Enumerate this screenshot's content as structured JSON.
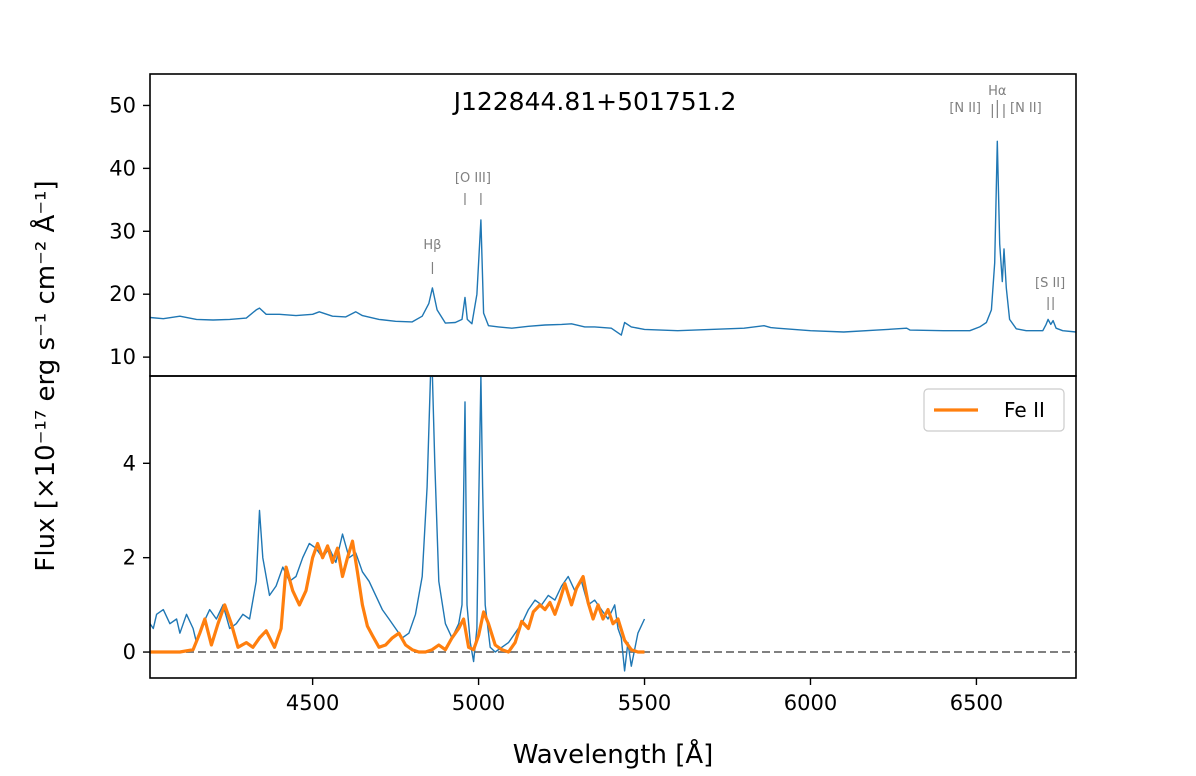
{
  "chart_data": [
    {
      "type": "line",
      "panel": "top",
      "title": "J122844.81+501751.2",
      "xlim": [
        4010,
        6800
      ],
      "ylim": [
        7,
        55
      ],
      "yticks": [
        10,
        20,
        30,
        40,
        50
      ],
      "grid": false,
      "series": [
        {
          "name": "",
          "color": "#1f77b4",
          "x": [
            4010,
            4050,
            4100,
            4150,
            4200,
            4250,
            4300,
            4330,
            4340,
            4360,
            4400,
            4450,
            4500,
            4520,
            4560,
            4600,
            4630,
            4650,
            4700,
            4750,
            4800,
            4830,
            4850,
            4861,
            4875,
            4900,
            4930,
            4950,
            4959,
            4966,
            4980,
            4995,
            5007,
            5015,
            5030,
            5060,
            5100,
            5150,
            5200,
            5250,
            5280,
            5320,
            5350,
            5400,
            5430,
            5440,
            5460,
            5500,
            5600,
            5700,
            5800,
            5860,
            5880,
            5900,
            6000,
            6100,
            6200,
            6290,
            6300,
            6400,
            6480,
            6510,
            6530,
            6545,
            6555,
            6563,
            6570,
            6578,
            6583,
            6590,
            6600,
            6620,
            6650,
            6700,
            6710,
            6716,
            6724,
            6731,
            6740,
            6760,
            6800
          ],
          "y": [
            16.3,
            16.1,
            16.5,
            16.0,
            15.9,
            16.0,
            16.2,
            17.5,
            17.8,
            16.8,
            16.8,
            16.6,
            16.8,
            17.2,
            16.5,
            16.4,
            17.2,
            16.6,
            16.0,
            15.7,
            15.6,
            16.5,
            18.5,
            21.0,
            17.5,
            15.4,
            15.5,
            16.0,
            19.5,
            16.0,
            15.3,
            20.0,
            31.8,
            17.0,
            15.0,
            14.8,
            14.6,
            14.9,
            15.1,
            15.2,
            15.3,
            14.8,
            14.8,
            14.6,
            13.5,
            15.5,
            14.8,
            14.4,
            14.2,
            14.4,
            14.6,
            15.0,
            14.7,
            14.6,
            14.2,
            14.0,
            14.3,
            14.6,
            14.3,
            14.2,
            14.2,
            14.8,
            15.5,
            17.5,
            25.0,
            44.3,
            28.0,
            22.0,
            27.2,
            21.0,
            16.0,
            14.5,
            14.2,
            14.2,
            15.2,
            16.0,
            15.2,
            15.8,
            14.6,
            14.2,
            14.0
          ]
        }
      ],
      "annotations": [
        {
          "text": "Hβ",
          "x": 4861
        },
        {
          "text": "[O III]",
          "x": 4983,
          "ticks": [
            4959,
            5007
          ]
        },
        {
          "text": "Hα",
          "x": 6563
        },
        {
          "text": "[N II]",
          "x": 6430,
          "ticks": [
            6548
          ]
        },
        {
          "text": "[N II]",
          "x": 6700,
          "ticks": [
            6583
          ]
        },
        {
          "text": "[S II]",
          "x": 6722,
          "ticks": [
            6716,
            6731
          ]
        }
      ]
    },
    {
      "type": "line",
      "panel": "bottom",
      "xlabel": "Wavelength [Å]",
      "ylabel": "Flux [×10⁻¹⁷ erg s⁻¹ cm⁻² Å⁻¹]",
      "xlim": [
        4010,
        6800
      ],
      "ylim": [
        -0.55,
        5.85
      ],
      "xticks": [
        4500,
        5000,
        5500,
        6000,
        6500
      ],
      "yticks": [
        0,
        2,
        4
      ],
      "grid": false,
      "legend": "top-right",
      "series": [
        {
          "name": "",
          "color": "#1f77b4",
          "x": [
            4010,
            4020,
            4030,
            4050,
            4070,
            4090,
            4100,
            4120,
            4140,
            4150,
            4170,
            4190,
            4210,
            4230,
            4250,
            4270,
            4290,
            4310,
            4330,
            4340,
            4350,
            4370,
            4390,
            4410,
            4430,
            4450,
            4470,
            4490,
            4510,
            4530,
            4550,
            4570,
            4590,
            4610,
            4630,
            4650,
            4670,
            4690,
            4710,
            4730,
            4750,
            4770,
            4790,
            4810,
            4830,
            4845,
            4855,
            4861,
            4868,
            4880,
            4900,
            4920,
            4940,
            4950,
            4959,
            4965,
            4975,
            4985,
            4995,
            5000,
            5007,
            5012,
            5020,
            5035,
            5050,
            5070,
            5090,
            5110,
            5130,
            5150,
            5170,
            5190,
            5210,
            5230,
            5250,
            5270,
            5290,
            5310,
            5330,
            5350,
            5370,
            5390,
            5410,
            5420,
            5430,
            5440,
            5450,
            5460,
            5480,
            5500
          ],
          "y": [
            0.6,
            0.5,
            0.8,
            0.9,
            0.6,
            0.7,
            0.4,
            0.8,
            0.5,
            0.2,
            0.6,
            0.9,
            0.7,
            1.0,
            0.5,
            0.6,
            0.8,
            0.7,
            1.5,
            3.0,
            2.0,
            1.2,
            1.4,
            1.8,
            1.5,
            1.6,
            2.0,
            2.3,
            2.2,
            2.0,
            2.2,
            1.9,
            2.5,
            2.0,
            2.1,
            1.7,
            1.5,
            1.2,
            0.9,
            0.7,
            0.5,
            0.3,
            0.4,
            0.8,
            1.6,
            3.5,
            5.85,
            5.85,
            4.0,
            1.5,
            0.6,
            0.3,
            0.6,
            1.0,
            5.3,
            1.0,
            0.2,
            -0.2,
            0.5,
            3.0,
            5.85,
            3.5,
            1.0,
            0.1,
            0.0,
            0.1,
            0.2,
            0.4,
            0.6,
            0.9,
            1.1,
            1.0,
            1.2,
            1.1,
            1.4,
            1.6,
            1.3,
            1.5,
            1.0,
            1.1,
            0.9,
            0.7,
            1.0,
            0.5,
            0.3,
            -0.4,
            0.2,
            -0.3,
            0.4,
            0.7
          ]
        },
        {
          "name": "Fe II",
          "color": "#ff7f0e",
          "x": [
            4010,
            4100,
            4140,
            4160,
            4175,
            4195,
            4215,
            4235,
            4255,
            4275,
            4300,
            4320,
            4340,
            4360,
            4385,
            4405,
            4420,
            4440,
            4460,
            4480,
            4500,
            4515,
            4530,
            4545,
            4560,
            4575,
            4590,
            4605,
            4620,
            4635,
            4650,
            4665,
            4680,
            4700,
            4720,
            4740,
            4760,
            4780,
            4800,
            4820,
            4840,
            4860,
            4880,
            4900,
            4920,
            4940,
            4955,
            4970,
            4985,
            5000,
            5015,
            5030,
            5050,
            5070,
            5090,
            5110,
            5130,
            5150,
            5165,
            5185,
            5200,
            5215,
            5230,
            5245,
            5260,
            5280,
            5295,
            5315,
            5330,
            5345,
            5360,
            5375,
            5390,
            5405,
            5420,
            5440,
            5460,
            5480,
            5500
          ],
          "y": [
            0.0,
            0.0,
            0.05,
            0.4,
            0.7,
            0.15,
            0.6,
            1.0,
            0.6,
            0.1,
            0.2,
            0.1,
            0.3,
            0.45,
            0.1,
            0.5,
            1.8,
            1.3,
            1.0,
            1.3,
            2.0,
            2.3,
            2.0,
            2.25,
            1.9,
            2.2,
            1.6,
            2.0,
            2.35,
            1.7,
            1.0,
            0.55,
            0.35,
            0.1,
            0.15,
            0.3,
            0.4,
            0.15,
            0.05,
            0.0,
            0.0,
            0.05,
            0.15,
            0.05,
            0.3,
            0.5,
            0.7,
            0.1,
            0.05,
            0.35,
            0.85,
            0.6,
            0.15,
            0.05,
            0.0,
            0.2,
            0.65,
            0.5,
            0.85,
            1.0,
            0.9,
            1.05,
            0.8,
            1.1,
            1.45,
            1.0,
            1.35,
            1.6,
            1.05,
            0.7,
            1.0,
            0.7,
            0.9,
            0.6,
            0.7,
            0.25,
            0.05,
            0.0,
            0.0
          ]
        }
      ],
      "reference_line": {
        "y": 0,
        "style": "dashed",
        "color": "#808080"
      }
    }
  ]
}
